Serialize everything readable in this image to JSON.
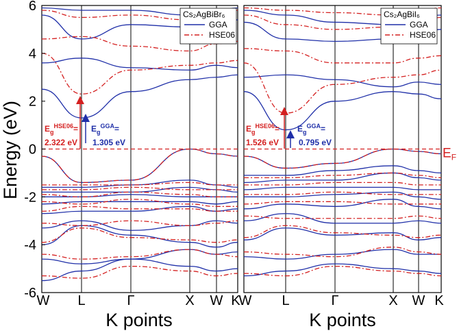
{
  "chart_data": [
    {
      "type": "line",
      "title": "",
      "compound": "Cs₂AgBiBr₆",
      "compound_plain": "Cs2AgBiBr6",
      "ylabel": "Energy (eV)",
      "xlabel": "K points",
      "ylim": [
        -6,
        6
      ],
      "yticks": [
        -6,
        -4,
        -2,
        0,
        2,
        4,
        6
      ],
      "kpoints": [
        "W",
        "L",
        "Γ",
        "X",
        "W",
        "K"
      ],
      "legend": {
        "position": "top-right",
        "entries": [
          "GGA",
          "HSE06"
        ]
      },
      "gap_annotations": [
        {
          "method": "HSE06",
          "label": "HSE06",
          "value": "2.322 eV",
          "color": "#d42020"
        },
        {
          "method": "GGA",
          "label": "GGA",
          "value": "1.305 eV",
          "color": "#1f2fa8"
        }
      ],
      "fermi_level": 0,
      "series": [
        {
          "name": "GGA",
          "color": "#1f2fa8",
          "style": "solid",
          "bands": [
            [
              -5.5,
              -5.1,
              -4.6,
              -4.9,
              -5.1,
              -5.0
            ],
            [
              -4.6,
              -4.8,
              -4.6,
              -4.2,
              -4.4,
              -4.3
            ],
            [
              -4.0,
              -3.2,
              -3.6,
              -3.9,
              -4.1,
              -3.9
            ],
            [
              -3.3,
              -3.0,
              -3.4,
              -3.2,
              -3.0,
              -3.1
            ],
            [
              -2.7,
              -2.6,
              -2.6,
              -2.4,
              -2.6,
              -2.5
            ],
            [
              -2.3,
              -2.2,
              -2.2,
              -2.2,
              -2.3,
              -2.2
            ],
            [
              -2.0,
              -2.0,
              -1.9,
              -2.0,
              -2.0,
              -2.0
            ],
            [
              -1.8,
              -1.8,
              -1.8,
              -1.6,
              -1.7,
              -1.8
            ],
            [
              -1.6,
              -1.6,
              -1.5,
              -1.3,
              -1.5,
              -1.6
            ],
            [
              -0.3,
              -1.4,
              -1.3,
              -0.0,
              -0.2,
              -0.3
            ],
            [
              2.5,
              1.3,
              2.4,
              2.9,
              3.0,
              3.1
            ],
            [
              3.6,
              3.8,
              3.4,
              3.3,
              3.5,
              3.4
            ],
            [
              5.6,
              4.6,
              5.2,
              5.1,
              5.3,
              5.4
            ],
            [
              5.9,
              5.8,
              5.8,
              5.6,
              5.8,
              5.9
            ]
          ]
        },
        {
          "name": "HSE06",
          "color": "#d42020",
          "style": "dashdot",
          "bands": [
            [
              -5.3,
              -5.4,
              -4.9,
              -5.1,
              -5.3,
              -5.2
            ],
            [
              -4.4,
              -4.6,
              -4.5,
              -4.2,
              -4.4,
              -4.5
            ],
            [
              -3.9,
              -3.3,
              -3.7,
              -3.8,
              -3.9,
              -3.8
            ],
            [
              -3.1,
              -3.2,
              -3.0,
              -3.2,
              -3.1,
              -3.0
            ],
            [
              -2.6,
              -2.4,
              -2.5,
              -2.5,
              -2.6,
              -2.6
            ],
            [
              -2.2,
              -2.3,
              -2.1,
              -2.3,
              -2.4,
              -2.4
            ],
            [
              -1.9,
              -2.0,
              -1.8,
              -1.9,
              -2.0,
              -2.0
            ],
            [
              -1.7,
              -1.7,
              -1.6,
              -1.7,
              -1.7,
              -1.7
            ],
            [
              -1.5,
              -1.5,
              -1.5,
              -1.4,
              -1.5,
              -1.5
            ],
            [
              -0.3,
              -1.4,
              -1.3,
              -0.0,
              -0.2,
              -0.3
            ],
            [
              4.0,
              2.3,
              3.3,
              3.5,
              3.6,
              3.7
            ],
            [
              4.6,
              4.7,
              4.3,
              4.1,
              4.4,
              4.5
            ],
            [
              5.8,
              5.5,
              5.6,
              5.4,
              5.6,
              5.8
            ]
          ]
        }
      ]
    },
    {
      "type": "line",
      "title": "",
      "compound": "Cs₂AgBiI₆",
      "compound_plain": "Cs2AgBiI6",
      "ylabel": "",
      "xlabel": "K points",
      "ylim": [
        -6,
        6
      ],
      "kpoints": [
        "W",
        "L",
        "Γ",
        "X",
        "W",
        "K"
      ],
      "legend": {
        "position": "top-right",
        "entries": [
          "GGA",
          "HSE06"
        ]
      },
      "gap_annotations": [
        {
          "method": "HSE06",
          "label": "HSE06",
          "value": "1.526 eV",
          "color": "#d42020"
        },
        {
          "method": "GGA",
          "label": "GGA",
          "value": "0.795 eV",
          "color": "#1f2fa8"
        }
      ],
      "fermi_label": "E",
      "fermi_label_sub": "F",
      "fermi_level": 0,
      "series": [
        {
          "name": "GGA",
          "color": "#1f2fa8",
          "style": "solid",
          "bands": [
            [
              -5.3,
              -5.1,
              -4.8,
              -5.0,
              -5.1,
              -5.2
            ],
            [
              -4.5,
              -4.6,
              -4.4,
              -4.2,
              -4.4,
              -4.4
            ],
            [
              -3.8,
              -3.3,
              -3.6,
              -3.5,
              -3.8,
              -3.7
            ],
            [
              -3.0,
              -2.7,
              -3.1,
              -3.1,
              -3.0,
              -3.1
            ],
            [
              -2.5,
              -2.3,
              -2.4,
              -2.1,
              -2.4,
              -2.5
            ],
            [
              -2.0,
              -2.0,
              -1.9,
              -1.8,
              -2.0,
              -2.1
            ],
            [
              -1.7,
              -1.6,
              -1.6,
              -1.6,
              -1.7,
              -1.7
            ],
            [
              -1.4,
              -1.3,
              -1.3,
              -1.0,
              -1.2,
              -1.3
            ],
            [
              -1.1,
              -1.1,
              -0.9,
              -0.7,
              -0.9,
              -1.0
            ],
            [
              -0.3,
              -0.8,
              -0.6,
              -0.0,
              -0.1,
              -0.2
            ],
            [
              2.4,
              0.8,
              2.0,
              2.4,
              2.3,
              2.1
            ],
            [
              3.0,
              3.1,
              2.9,
              2.6,
              2.8,
              2.7
            ],
            [
              5.3,
              4.6,
              4.5,
              4.6,
              4.8,
              5.0
            ],
            [
              5.8,
              5.6,
              5.3,
              5.2,
              5.5,
              5.6
            ]
          ]
        },
        {
          "name": "HSE06",
          "color": "#d42020",
          "style": "dashdot",
          "bands": [
            [
              -5.2,
              -5.3,
              -4.9,
              -5.1,
              -5.2,
              -5.3
            ],
            [
              -4.3,
              -4.4,
              -4.5,
              -4.1,
              -4.3,
              -4.4
            ],
            [
              -3.7,
              -3.2,
              -3.5,
              -3.6,
              -3.7,
              -3.6
            ],
            [
              -2.8,
              -2.9,
              -2.9,
              -2.9,
              -2.8,
              -2.9
            ],
            [
              -2.3,
              -2.2,
              -2.2,
              -2.3,
              -2.3,
              -2.3
            ],
            [
              -1.9,
              -1.9,
              -1.8,
              -1.9,
              -1.9,
              -1.9
            ],
            [
              -1.5,
              -1.5,
              -1.4,
              -1.4,
              -1.5,
              -1.5
            ],
            [
              -1.2,
              -1.2,
              -1.1,
              -1.0,
              -1.1,
              -1.2
            ],
            [
              -0.3,
              -0.8,
              -0.6,
              -0.0,
              -0.1,
              -0.2
            ],
            [
              3.6,
              1.5,
              2.7,
              3.0,
              3.1,
              3.3
            ],
            [
              4.2,
              4.1,
              3.6,
              3.6,
              3.8,
              3.9
            ],
            [
              5.6,
              5.2,
              5.0,
              5.1,
              5.3,
              5.5
            ],
            [
              5.9,
              5.8,
              5.7,
              5.6,
              5.8,
              5.9
            ]
          ]
        }
      ]
    }
  ]
}
